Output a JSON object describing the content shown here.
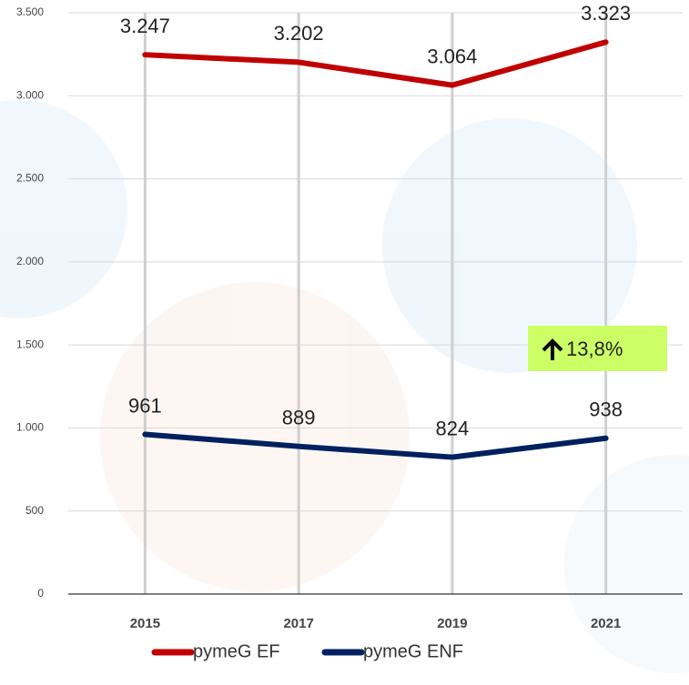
{
  "chart_data": {
    "type": "line",
    "categories": [
      "2015",
      "2017",
      "2019",
      "2021"
    ],
    "series": [
      {
        "name": "pymeG EF",
        "color": "#c00000",
        "values": [
          3247,
          3202,
          3064,
          3323
        ],
        "value_labels": [
          "3.247",
          "3.202",
          "3.064",
          "3.323"
        ]
      },
      {
        "name": "pymeG ENF",
        "color": "#002060",
        "values": [
          961,
          889,
          824,
          938
        ],
        "value_labels": [
          "961",
          "889",
          "824",
          "938"
        ]
      }
    ],
    "ylim": [
      0,
      3500
    ],
    "yticks": [
      0,
      500,
      {
        "value": 1000,
        "label": "1.000"
      },
      {
        "value": 1500,
        "label": "1.500"
      },
      {
        "value": 2000,
        "label": "2.000"
      },
      {
        "value": 2500,
        "label": "2.500"
      },
      {
        "value": 3000,
        "label": "3.000"
      },
      {
        "value": 3500,
        "label": "3.500"
      }
    ],
    "grid": true,
    "annotation": "13,8%",
    "legend": "bottom"
  }
}
